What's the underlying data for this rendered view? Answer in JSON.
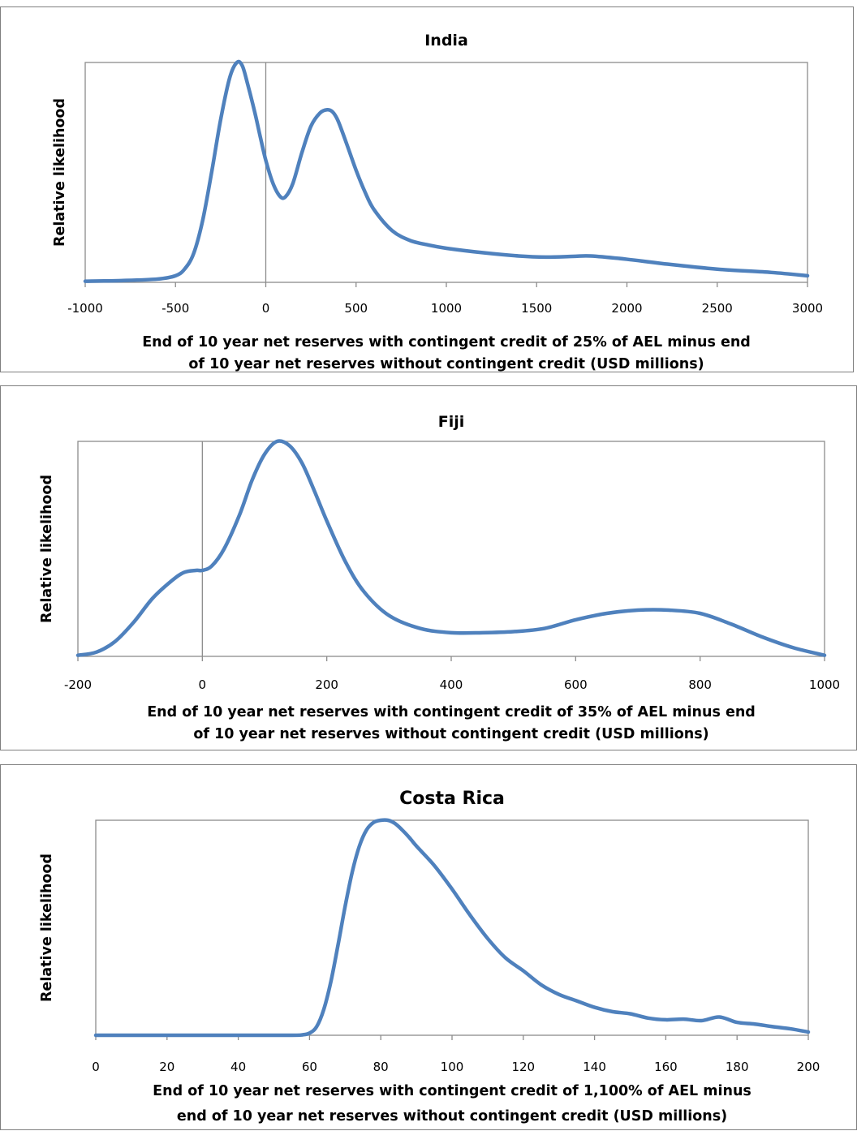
{
  "colors": {
    "series": "#4f81bd"
  },
  "chart_data": [
    {
      "type": "line",
      "title": "India",
      "ylabel": "Relative likelihood",
      "xlabel_lines": [
        "End of 10 year net reserves with contingent credit of 25% of AEL minus end",
        "of 10 year net reserves without contingent credit (USD millions)"
      ],
      "xlim": [
        -1000,
        3000
      ],
      "ylim": [
        0,
        1
      ],
      "xticks": [
        -1000,
        -500,
        0,
        500,
        1000,
        1500,
        2000,
        2500,
        3000
      ],
      "xtick_labels": [
        "-1000",
        "-500",
        "0",
        "500",
        "1000",
        "1500",
        "2000",
        "2500",
        "3000"
      ],
      "vertical_line_at": 0,
      "series": [
        {
          "x": [
            -1000,
            -800,
            -600,
            -500,
            -450,
            -400,
            -350,
            -300,
            -250,
            -200,
            -160,
            -130,
            -100,
            -60,
            -30,
            0,
            40,
            80,
            110,
            150,
            200,
            250,
            300,
            340,
            370,
            400,
            450,
            500,
            550,
            600,
            700,
            800,
            900,
            1000,
            1200,
            1400,
            1550,
            1700,
            1800,
            2000,
            2200,
            2500,
            2800,
            3000
          ],
          "y": [
            0.005,
            0.008,
            0.015,
            0.03,
            0.06,
            0.13,
            0.28,
            0.5,
            0.74,
            0.93,
            1.0,
            0.985,
            0.9,
            0.77,
            0.66,
            0.555,
            0.45,
            0.39,
            0.39,
            0.45,
            0.59,
            0.71,
            0.77,
            0.785,
            0.775,
            0.735,
            0.625,
            0.51,
            0.41,
            0.33,
            0.235,
            0.19,
            0.17,
            0.155,
            0.135,
            0.12,
            0.115,
            0.118,
            0.12,
            0.105,
            0.085,
            0.06,
            0.045,
            0.03
          ]
        }
      ]
    },
    {
      "type": "line",
      "title": "Fiji",
      "ylabel": "Relative likelihood",
      "xlabel_lines": [
        "End of 10 year net reserves with contingent credit of 35% of AEL minus end",
        "of 10 year net reserves without contingent credit (USD millions)"
      ],
      "xlim": [
        -200,
        1000
      ],
      "ylim": [
        0,
        1
      ],
      "xticks": [
        -200,
        0,
        200,
        400,
        600,
        800,
        1000
      ],
      "xtick_labels": [
        "-200",
        "0",
        "200",
        "400",
        "600",
        "800",
        "1000"
      ],
      "vertical_line_at": 0,
      "series": [
        {
          "x": [
            -200,
            -170,
            -140,
            -110,
            -80,
            -50,
            -30,
            -10,
            0,
            15,
            35,
            60,
            80,
            100,
            120,
            140,
            160,
            180,
            200,
            230,
            260,
            300,
            350,
            400,
            450,
            500,
            550,
            600,
            650,
            700,
            750,
            800,
            850,
            900,
            950,
            1000
          ],
          "y": [
            0.005,
            0.02,
            0.07,
            0.16,
            0.27,
            0.35,
            0.39,
            0.4,
            0.4,
            0.42,
            0.5,
            0.66,
            0.82,
            0.94,
            1.0,
            0.98,
            0.9,
            0.77,
            0.63,
            0.44,
            0.3,
            0.19,
            0.13,
            0.11,
            0.11,
            0.115,
            0.13,
            0.17,
            0.2,
            0.215,
            0.215,
            0.2,
            0.15,
            0.09,
            0.04,
            0.005
          ]
        }
      ]
    },
    {
      "type": "line",
      "title": "Costa Rica",
      "ylabel": "Relative likelihood",
      "xlabel_lines": [
        "End of 10 year net reserves with contingent credit of 1,100% of AEL minus",
        "end of 10 year net reserves without contingent credit (USD millions)"
      ],
      "xlim": [
        0,
        200
      ],
      "ylim": [
        0,
        1
      ],
      "xticks": [
        0,
        20,
        40,
        60,
        80,
        100,
        120,
        140,
        160,
        180,
        200
      ],
      "xtick_labels": [
        "0",
        "20",
        "40",
        "60",
        "80",
        "100",
        "120",
        "140",
        "160",
        "180",
        "200"
      ],
      "vertical_line_at": null,
      "series": [
        {
          "x": [
            0,
            20,
            40,
            55,
            58,
            60,
            62,
            64,
            66,
            68,
            70,
            72,
            74,
            76,
            78,
            80,
            82,
            84,
            86,
            88,
            90,
            95,
            100,
            105,
            110,
            115,
            120,
            125,
            130,
            135,
            140,
            145,
            150,
            155,
            160,
            165,
            170,
            175,
            180,
            185,
            190,
            195,
            200
          ],
          "y": [
            0.0,
            0.0,
            0.0,
            0.0,
            0.002,
            0.01,
            0.04,
            0.12,
            0.25,
            0.42,
            0.6,
            0.76,
            0.88,
            0.955,
            0.99,
            1.0,
            1.0,
            0.985,
            0.955,
            0.92,
            0.88,
            0.79,
            0.68,
            0.56,
            0.45,
            0.36,
            0.3,
            0.235,
            0.19,
            0.16,
            0.13,
            0.11,
            0.1,
            0.08,
            0.072,
            0.075,
            0.068,
            0.085,
            0.06,
            0.052,
            0.04,
            0.03,
            0.015
          ]
        }
      ]
    }
  ]
}
